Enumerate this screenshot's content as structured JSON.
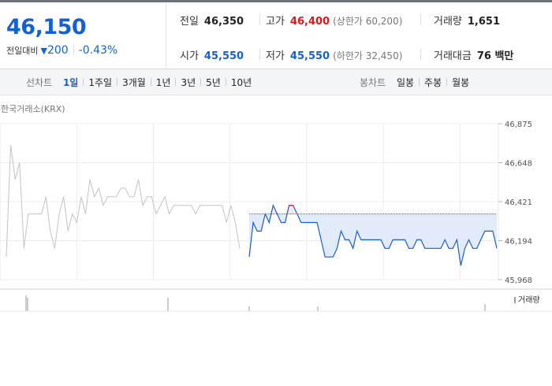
{
  "quote": {
    "price": "46,150",
    "diff_label": "전일대비",
    "diff_arrow": "▼",
    "diff_value": "200",
    "diff_pct": "-0.43%"
  },
  "stats": {
    "prev": {
      "label": "전일",
      "value": "46,350"
    },
    "high": {
      "label": "고가",
      "value": "46,400",
      "sub": "(상한가 60,200)"
    },
    "volume": {
      "label": "거래량",
      "value": "1,651"
    },
    "open": {
      "label": "시가",
      "value": "45,550"
    },
    "low": {
      "label": "저가",
      "value": "45,550",
      "sub": "(하한가 32,450)"
    },
    "amount": {
      "label": "거래대금",
      "value": "76 백만"
    }
  },
  "period_tabs": {
    "label": "선차트",
    "items": [
      "1일",
      "1주일",
      "3개월",
      "1년",
      "3년",
      "5년",
      "10년"
    ],
    "selected": "1일"
  },
  "candle_tabs": {
    "label": "봉차트",
    "items": [
      "일봉",
      "주봉",
      "월봉"
    ]
  },
  "chart": {
    "exchange_label": "한국거래소(KRX)",
    "volume_legend": "거래량",
    "colors": {
      "today_line": "#1a5fc7",
      "today_fill": "#e1ebfa",
      "up_fill": "#fbe8e8",
      "up_line": "#e21b1b",
      "prev_line": "#c3c3c3",
      "accent_blue": "#1560d4",
      "accent_red": "#d61919"
    }
  },
  "chart_data": {
    "type": "line",
    "y_ticks": [
      "46,875",
      "46,648",
      "46,421",
      "46,194",
      "45,968"
    ],
    "ylim": [
      45968,
      46875
    ],
    "baseline": 46350,
    "series": [
      {
        "values": [
          46100,
          46750,
          46550,
          46650,
          46150,
          46350,
          46350,
          46350,
          46350,
          46450,
          46250,
          46150,
          46350,
          46450,
          46250,
          46350,
          46300,
          46450,
          46350,
          46550,
          46450,
          46500,
          46400,
          46450,
          46450,
          46450,
          46500,
          46500,
          46450,
          46450,
          46550,
          46400,
          46450,
          46450,
          46350,
          46400,
          46450,
          46350,
          46400,
          46400,
          46400,
          46400,
          46400,
          46350,
          46400,
          46400,
          46400,
          46400,
          46400,
          46400,
          46300,
          46400,
          46300,
          46150
        ]
      },
      {
        "values": [
          46100,
          46300,
          46250,
          46250,
          46350,
          46300,
          46400,
          46350,
          46300,
          46300,
          46400,
          46400,
          46350,
          46300,
          46300,
          46300,
          46300,
          46300,
          46200,
          46100,
          46100,
          46100,
          46150,
          46250,
          46200,
          46200,
          46150,
          46250,
          46200,
          46200,
          46200,
          46200,
          46200,
          46200,
          46150,
          46150,
          46200,
          46200,
          46200,
          46200,
          46150,
          46150,
          46200,
          46200,
          46150,
          46150,
          46150,
          46150,
          46150,
          46200,
          46150,
          46150,
          46200,
          46050,
          46150,
          46200,
          46150,
          46150,
          46200,
          46250,
          46250,
          46250,
          46150
        ]
      }
    ]
  }
}
